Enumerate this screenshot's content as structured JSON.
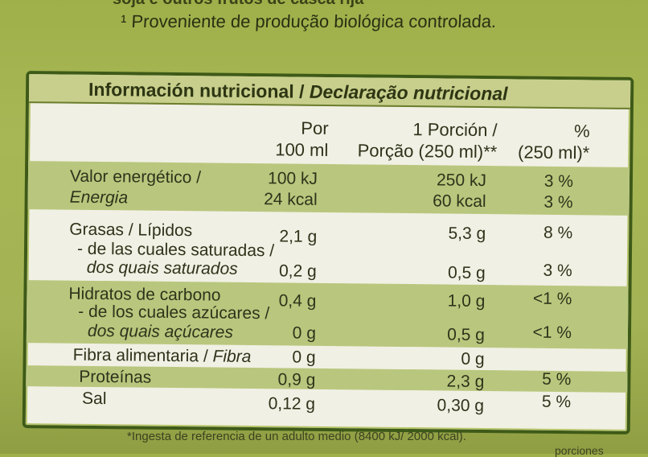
{
  "top_line": "¹ Proveniente de produção biológica controlada.",
  "top_cut": "soja e outros frutos de casca rija",
  "header": {
    "title_es": "Información nutricional",
    "sep": " / ",
    "title_pt": "Declaração nutricional"
  },
  "columns": {
    "per100_l1": "Por",
    "per100_l2": "100 ml",
    "portion_l1": "1 Porción /",
    "portion_l2": "Porção (250 ml)**",
    "pct_l1": "%",
    "pct_l2": "(250 ml)*"
  },
  "rows": [
    {
      "label": "Valor energético /",
      "v1": "100 kJ",
      "v2": "250 kJ",
      "v3": "3 %"
    },
    {
      "label": "Energia",
      "v1": "24 kcal",
      "v2": "60 kcal",
      "v3": "3 %"
    },
    {
      "label": "Grasas / Lípidos",
      "v1": "2,1 g",
      "v2": "5,3 g",
      "v3": "8 %"
    },
    {
      "label": "- de las cuales saturadas /",
      "v1": "",
      "v2": "",
      "v3": ""
    },
    {
      "label": "dos quais saturados",
      "v1": "0,2 g",
      "v2": "0,5 g",
      "v3": "3 %"
    },
    {
      "label": "Hidratos de carbono",
      "v1": "0,4 g",
      "v2": "1,0 g",
      "v3": "<1 %"
    },
    {
      "label": "- de los cuales azúcares /",
      "v1": "",
      "v2": "",
      "v3": ""
    },
    {
      "label": "dos quais açúcares",
      "v1": "0 g",
      "v2": "0,5 g",
      "v3": "<1 %"
    },
    {
      "label_a": "Fibra alimentaria",
      "label_b": "Fibra",
      "v1": "0 g",
      "v2": "0 g",
      "v3": ""
    },
    {
      "label": "Proteínas",
      "v1": "0,9 g",
      "v2": "2,3 g",
      "v3": "5 %"
    },
    {
      "label": "Sal",
      "v1": "0,12 g",
      "v2": "0,30 g",
      "v3": "5 %"
    }
  ],
  "footnote": "*Ingesta de referencia de un adulto medio (8400 kJ/ 2000 kcal).",
  "footnote_cut": "porciones"
}
